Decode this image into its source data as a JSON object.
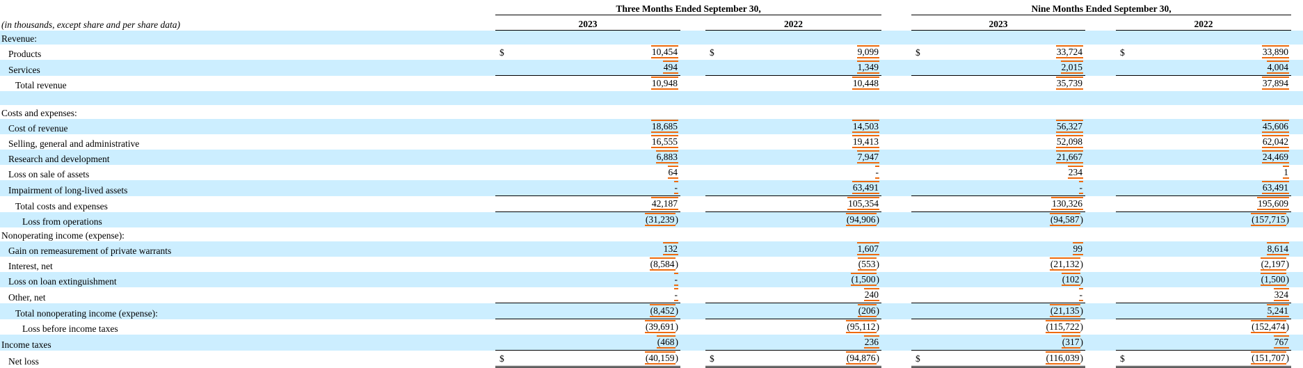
{
  "document": {
    "meta_label": "(in thousands, except share and per share data)",
    "colors": {
      "stripe": "#CCEEFF",
      "fact_border": "#EE6A0C",
      "rule": "#000000"
    },
    "table": {
      "col_groups": [
        {
          "label": "Three Months Ended September 30,",
          "years": [
            "2023",
            "2022"
          ]
        },
        {
          "label": "Nine Months Ended September 30,",
          "years": [
            "2023",
            "2022"
          ]
        }
      ],
      "currency_symbol": "$",
      "rows": [
        {
          "label": "Revenue:",
          "indent": 0,
          "shaded": true,
          "values": null
        },
        {
          "label": "Products",
          "indent": 1,
          "shaded": false,
          "dollar": true,
          "values": [
            "10,454",
            "9,099",
            "33,724",
            "33,890"
          ]
        },
        {
          "label": "Services",
          "indent": 1,
          "shaded": true,
          "values": [
            "494",
            "1,349",
            "2,015",
            "4,004"
          ]
        },
        {
          "label": "Total revenue",
          "indent": 2,
          "shaded": false,
          "topline": true,
          "values": [
            "10,948",
            "10,448",
            "35,739",
            "37,894"
          ]
        },
        {
          "label": "",
          "indent": 0,
          "shaded": true,
          "values": null
        },
        {
          "label": "Costs and expenses:",
          "indent": 0,
          "shaded": false,
          "values": null
        },
        {
          "label": "Cost of revenue",
          "indent": 1,
          "shaded": true,
          "values": [
            "18,685",
            "14,503",
            "56,327",
            "45,606"
          ]
        },
        {
          "label": "Selling, general and administrative",
          "indent": 1,
          "shaded": false,
          "values": [
            "16,555",
            "19,413",
            "52,098",
            "62,042"
          ]
        },
        {
          "label": "Research and development",
          "indent": 1,
          "shaded": true,
          "values": [
            "6,883",
            "7,947",
            "21,667",
            "24,469"
          ]
        },
        {
          "label": "Loss on sale of assets",
          "indent": 1,
          "shaded": false,
          "values": [
            "64",
            "-",
            "234",
            "1"
          ]
        },
        {
          "label": "Impairment of long-lived assets",
          "indent": 1,
          "shaded": true,
          "values": [
            "-",
            "63,491",
            "-",
            "63,491"
          ]
        },
        {
          "label": "Total costs and expenses",
          "indent": 2,
          "shaded": false,
          "topline": true,
          "values": [
            "42,187",
            "105,354",
            "130,326",
            "195,609"
          ]
        },
        {
          "label": "Loss from operations",
          "indent": 3,
          "shaded": true,
          "topline": true,
          "values": [
            "(31,239)",
            "(94,906)",
            "(94,587)",
            "(157,715)"
          ]
        },
        {
          "label": "Nonoperating income (expense):",
          "indent": 0,
          "shaded": false,
          "values": null
        },
        {
          "label": "Gain on remeasurement of private warrants",
          "indent": 1,
          "shaded": true,
          "values": [
            "132",
            "1,607",
            "99",
            "8,614"
          ]
        },
        {
          "label": "Interest, net",
          "indent": 1,
          "shaded": false,
          "values": [
            "(8,584)",
            "(553)",
            "(21,132)",
            "(2,197)"
          ]
        },
        {
          "label": "Loss on loan extinguishment",
          "indent": 1,
          "shaded": true,
          "values": [
            "-",
            "(1,500)",
            "(102)",
            "(1,500)"
          ]
        },
        {
          "label": "Other, net",
          "indent": 1,
          "shaded": false,
          "values": [
            "-",
            "240",
            "-",
            "324"
          ]
        },
        {
          "label": "Total nonoperating income (expense):",
          "indent": 2,
          "shaded": true,
          "topline": true,
          "values": [
            "(8,452)",
            "(206)",
            "(21,135)",
            "5,241"
          ]
        },
        {
          "label": "Loss before income taxes",
          "indent": 3,
          "shaded": false,
          "topline": true,
          "values": [
            "(39,691)",
            "(95,112)",
            "(115,722)",
            "(152,474)"
          ]
        },
        {
          "label": "Income taxes",
          "indent": 0,
          "shaded": true,
          "values": [
            "(468)",
            "236",
            "(317)",
            "767"
          ]
        },
        {
          "label": "Net loss",
          "indent": 1,
          "shaded": false,
          "dollar": true,
          "topline": true,
          "bottom_double": true,
          "values": [
            "(40,159)",
            "(94,876)",
            "(116,039)",
            "(151,707)"
          ]
        }
      ]
    }
  }
}
